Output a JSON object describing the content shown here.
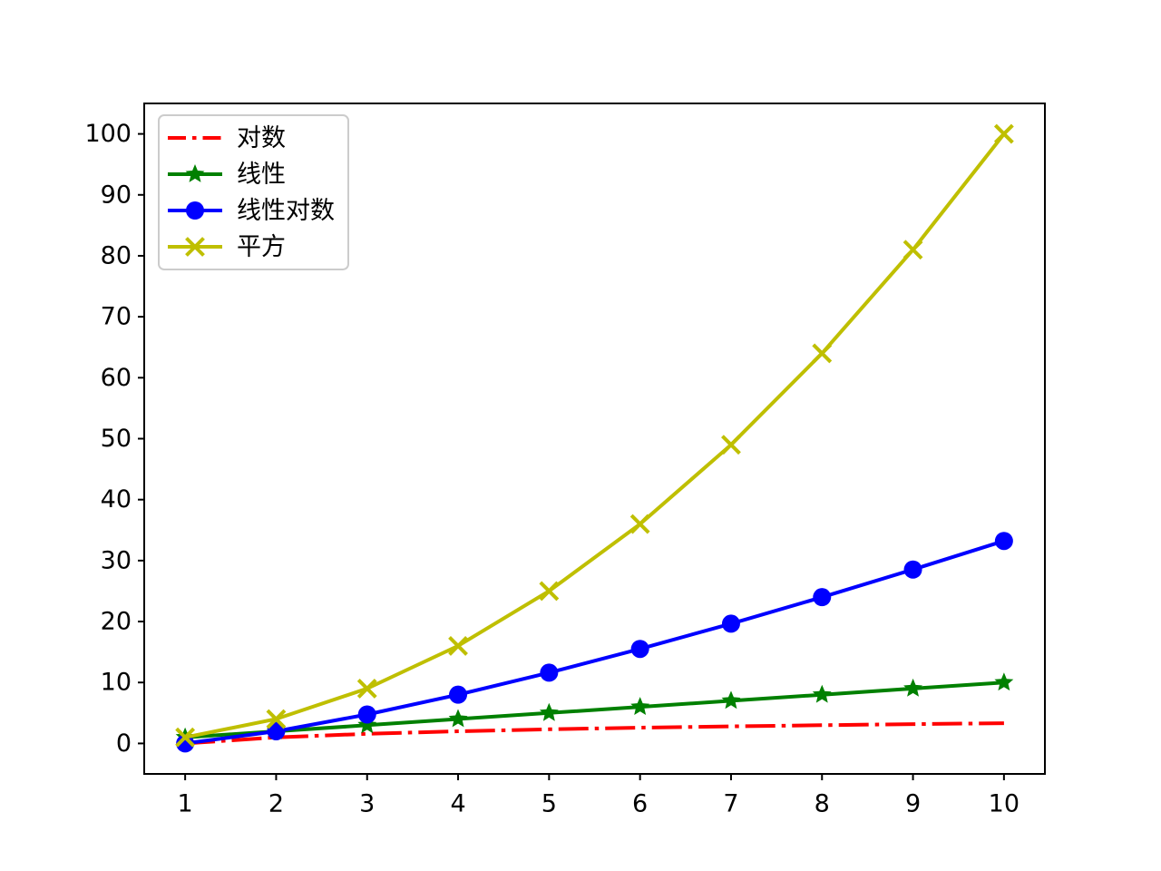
{
  "figure": {
    "background": "#ffffff",
    "title": ""
  },
  "chart_data": {
    "type": "line",
    "title": "",
    "xlabel": "",
    "ylabel": "",
    "grid": false,
    "legend_position": "upper left",
    "x": [
      1,
      2,
      3,
      4,
      5,
      6,
      7,
      8,
      9,
      10
    ],
    "xticks": [
      1,
      2,
      3,
      4,
      5,
      6,
      7,
      8,
      9,
      10
    ],
    "yticks": [
      0,
      10,
      20,
      30,
      40,
      50,
      60,
      70,
      80,
      90,
      100
    ],
    "xlim": [
      0.55,
      10.45
    ],
    "ylim": [
      -5,
      105
    ],
    "series": [
      {
        "name": "对数",
        "color": "#ff0000",
        "linestyle": "dashdot",
        "marker": "none",
        "values": [
          0.0,
          1.0,
          1.585,
          2.0,
          2.322,
          2.585,
          2.807,
          3.0,
          3.17,
          3.322
        ]
      },
      {
        "name": "线性",
        "color": "#008000",
        "linestyle": "solid",
        "marker": "star",
        "values": [
          1,
          2,
          3,
          4,
          5,
          6,
          7,
          8,
          9,
          10
        ]
      },
      {
        "name": "线性对数",
        "color": "#0000ff",
        "linestyle": "solid",
        "marker": "circle",
        "values": [
          0.0,
          2.0,
          4.755,
          8.0,
          11.61,
          15.51,
          19.651,
          24.0,
          28.529,
          33.219
        ]
      },
      {
        "name": "平方",
        "color": "#bfbf00",
        "linestyle": "solid",
        "marker": "x",
        "values": [
          1,
          4,
          9,
          16,
          25,
          36,
          49,
          64,
          81,
          100
        ]
      }
    ]
  }
}
